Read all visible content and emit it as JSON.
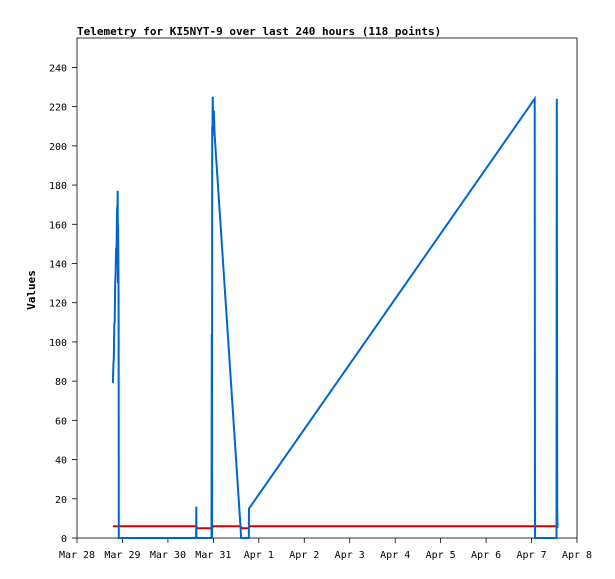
{
  "chart_data": {
    "type": "line",
    "title": "Telemetry for KI5NYT-9 over last 240 hours (118 points)",
    "xlabel": "",
    "ylabel": "Values",
    "xlim": [
      0,
      11
    ],
    "ylim": [
      0,
      255
    ],
    "yticks": [
      0,
      20,
      40,
      60,
      80,
      100,
      120,
      140,
      160,
      180,
      200,
      220,
      240
    ],
    "xticks": [
      {
        "x": 0,
        "label": "Mar 28"
      },
      {
        "x": 1,
        "label": "Mar 29"
      },
      {
        "x": 2,
        "label": "Mar 30"
      },
      {
        "x": 3,
        "label": "Mar 31"
      },
      {
        "x": 4,
        "label": "Apr 1"
      },
      {
        "x": 5,
        "label": "Apr 2"
      },
      {
        "x": 6,
        "label": "Apr 3"
      },
      {
        "x": 7,
        "label": "Apr 4"
      },
      {
        "x": 8,
        "label": "Apr 5"
      },
      {
        "x": 9,
        "label": "Apr 6"
      },
      {
        "x": 10,
        "label": "Apr 7"
      },
      {
        "x": 11,
        "label": "Apr 8"
      }
    ],
    "grid": false,
    "series": [
      {
        "color": "#d40000",
        "x": [
          0.79,
          2.62,
          2.64,
          2.96,
          3.0,
          3.6,
          3.63,
          3.78,
          3.8,
          10.07,
          10.55,
          10.57
        ],
        "y": [
          6,
          6,
          5,
          5,
          6,
          6,
          5,
          5,
          6,
          6,
          6,
          6
        ]
      },
      {
        "color": "#0066cc",
        "x": [
          0.79,
          0.8,
          0.81,
          0.82,
          0.83,
          0.84,
          0.85,
          0.86,
          0.87,
          0.88,
          0.89,
          0.895,
          0.9,
          0.905,
          0.91,
          0.915,
          0.92,
          0.925,
          0.93,
          0.935,
          0.94,
          2.62,
          2.625,
          2.63,
          2.96,
          2.965,
          2.97,
          2.975,
          2.98,
          2.985,
          2.99,
          2.995,
          3.0,
          3.005,
          3.01,
          3.03,
          3.6,
          3.61,
          3.78,
          3.785,
          10.07,
          10.075,
          10.08,
          10.55,
          10.555,
          10.56,
          10.565,
          10.57
        ],
        "y": [
          79,
          89,
          91,
          109,
          110,
          130,
          135,
          148,
          145,
          167,
          170,
          177,
          130,
          160,
          140,
          120,
          0,
          0,
          0,
          0,
          0,
          0,
          16,
          0,
          0,
          104,
          0,
          210,
          205,
          225,
          220,
          215,
          210,
          212,
          218,
          205,
          5,
          0,
          0,
          15,
          224,
          0,
          0,
          0,
          224,
          120,
          16,
          5
        ]
      }
    ]
  }
}
